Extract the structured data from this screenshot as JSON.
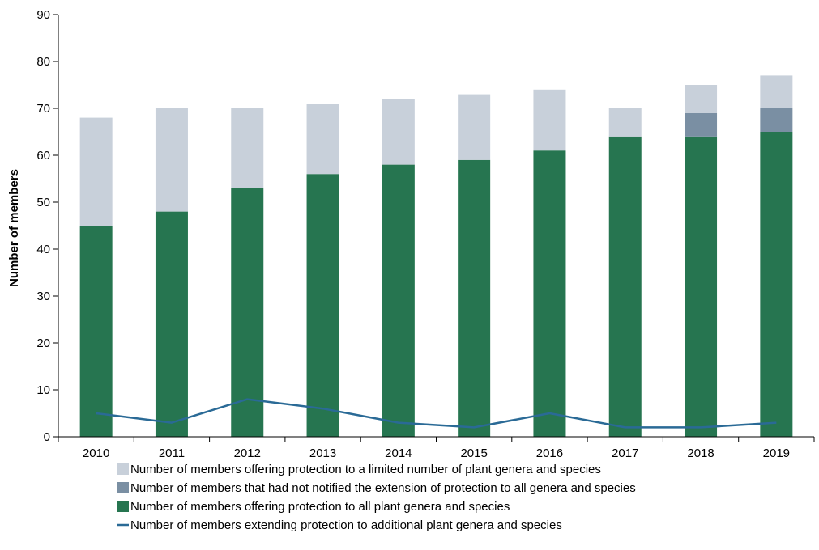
{
  "chart_data": {
    "type": "bar",
    "stacked": true,
    "categories": [
      "2010",
      "2011",
      "2012",
      "2013",
      "2014",
      "2015",
      "2016",
      "2017",
      "2018",
      "2019"
    ],
    "ylabel": "Number of members",
    "xlabel": "",
    "ylim": [
      0,
      90
    ],
    "yticks": [
      "0",
      "10",
      "20",
      "30",
      "40",
      "50",
      "60",
      "70",
      "80",
      "90"
    ],
    "grid": false,
    "legend_position": "bottom",
    "series": [
      {
        "name": "Number of members offering protection to all plant genera and species",
        "kind": "bar",
        "color": "#267550",
        "values": [
          45,
          48,
          53,
          56,
          58,
          59,
          61,
          64,
          64,
          65
        ]
      },
      {
        "name": "Number of members that had not notified the extension of protection to all genera and species",
        "kind": "bar",
        "color": "#7a8fa3",
        "values": [
          0,
          0,
          0,
          0,
          0,
          0,
          0,
          0,
          5,
          5
        ]
      },
      {
        "name": "Number of members offering protection to a limited number of plant genera and species",
        "kind": "bar",
        "color": "#c8d0da",
        "values": [
          23,
          22,
          17,
          15,
          14,
          14,
          13,
          6,
          6,
          7
        ]
      },
      {
        "name": "Number of members extending protection to additional plant genera and species",
        "kind": "line",
        "color": "#2a6a96",
        "values": [
          5,
          3,
          8,
          6,
          3,
          2,
          5,
          2,
          2,
          3
        ]
      }
    ],
    "legend_order": [
      2,
      1,
      0,
      3
    ]
  }
}
